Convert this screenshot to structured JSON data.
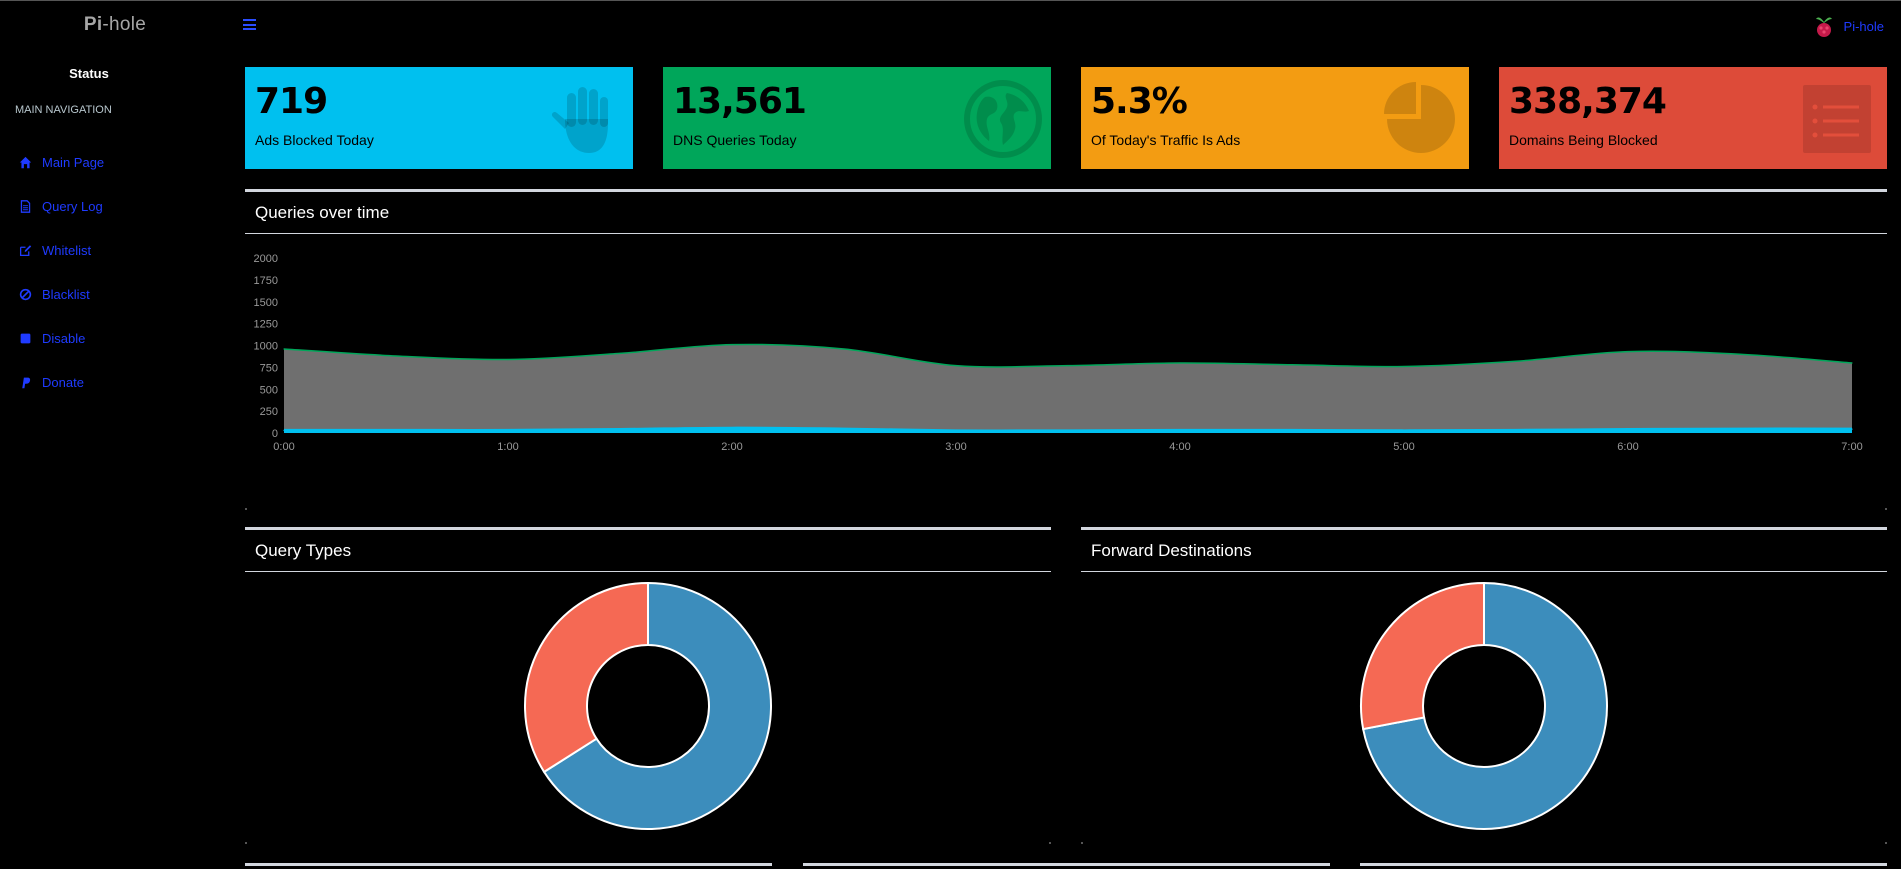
{
  "app": {
    "logo_bold": "Pi",
    "logo_rest": "-hole",
    "brand_label": "Pi-hole"
  },
  "sidebar": {
    "status": "Status",
    "nav_header": "MAIN NAVIGATION",
    "items": [
      {
        "label": "Main Page",
        "icon": "home-icon"
      },
      {
        "label": "Query Log",
        "icon": "file-text-icon"
      },
      {
        "label": "Whitelist",
        "icon": "edit-icon"
      },
      {
        "label": "Blacklist",
        "icon": "ban-icon"
      },
      {
        "label": "Disable",
        "icon": "stop-icon"
      },
      {
        "label": "Donate",
        "icon": "paypal-icon"
      }
    ]
  },
  "stats": [
    {
      "value": "719",
      "label": "Ads Blocked Today",
      "color": "#00c0ef",
      "icon": "hand-icon"
    },
    {
      "value": "13,561",
      "label": "DNS Queries Today",
      "color": "#00a65a",
      "icon": "globe-icon"
    },
    {
      "value": "5.3%",
      "label": "Of Today's Traffic Is Ads",
      "color": "#f39c12",
      "icon": "pie-chart-icon"
    },
    {
      "value": "338,374",
      "label": "Domains Being Blocked",
      "color": "#dd4b39",
      "icon": "list-icon"
    }
  ],
  "panels": {
    "queries_over_time": "Queries over time",
    "query_types": "Query Types",
    "forward_destinations": "Forward Destinations"
  },
  "chart_data": [
    {
      "type": "area",
      "title": "Queries over time",
      "x": [
        "0:00",
        "0:30",
        "1:00",
        "1:30",
        "2:00",
        "2:30",
        "3:00",
        "3:30",
        "4:00",
        "4:30",
        "5:00",
        "5:30",
        "6:00",
        "6:30",
        "7:00"
      ],
      "x_ticks": [
        "0:00",
        "1:00",
        "2:00",
        "3:00",
        "4:00",
        "5:00",
        "6:00",
        "7:00"
      ],
      "y_ticks": [
        0,
        250,
        500,
        750,
        1000,
        1250,
        1500,
        1750,
        2000
      ],
      "ylim": [
        0,
        2000
      ],
      "grid": false,
      "series": [
        {
          "values": [
            960,
            880,
            840,
            910,
            1010,
            960,
            770,
            770,
            800,
            780,
            760,
            820,
            930,
            900,
            800
          ],
          "color": "#6f6f6f",
          "line": "#00a65a"
        },
        {
          "values": [
            30,
            30,
            30,
            40,
            55,
            45,
            25,
            25,
            30,
            30,
            25,
            30,
            40,
            45,
            45
          ],
          "color": "#00c0ef"
        }
      ]
    },
    {
      "type": "pie",
      "title": "Query Types",
      "slices": [
        {
          "value": 66,
          "color": "#3c8dbc"
        },
        {
          "value": 34,
          "color": "#f56954"
        }
      ]
    },
    {
      "type": "pie",
      "title": "Forward Destinations",
      "slices": [
        {
          "value": 72,
          "color": "#3c8dbc"
        },
        {
          "value": 28,
          "color": "#f56954"
        }
      ]
    }
  ]
}
